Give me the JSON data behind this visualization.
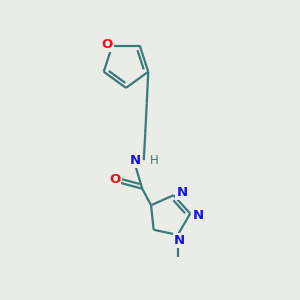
{
  "background_color": "#eaece8",
  "bond_color": "#3a7a7a",
  "bond_color_teal": "#3a7a7a",
  "bond_width": 1.6,
  "atom_colors": {
    "O": "#ee1111",
    "N": "#1111ee",
    "C": "#3a7a7a",
    "H": "#3a7a7a"
  },
  "figsize": [
    3.0,
    3.0
  ],
  "dpi": 100,
  "xlim": [
    0,
    10
  ],
  "ylim": [
    0,
    10
  ]
}
